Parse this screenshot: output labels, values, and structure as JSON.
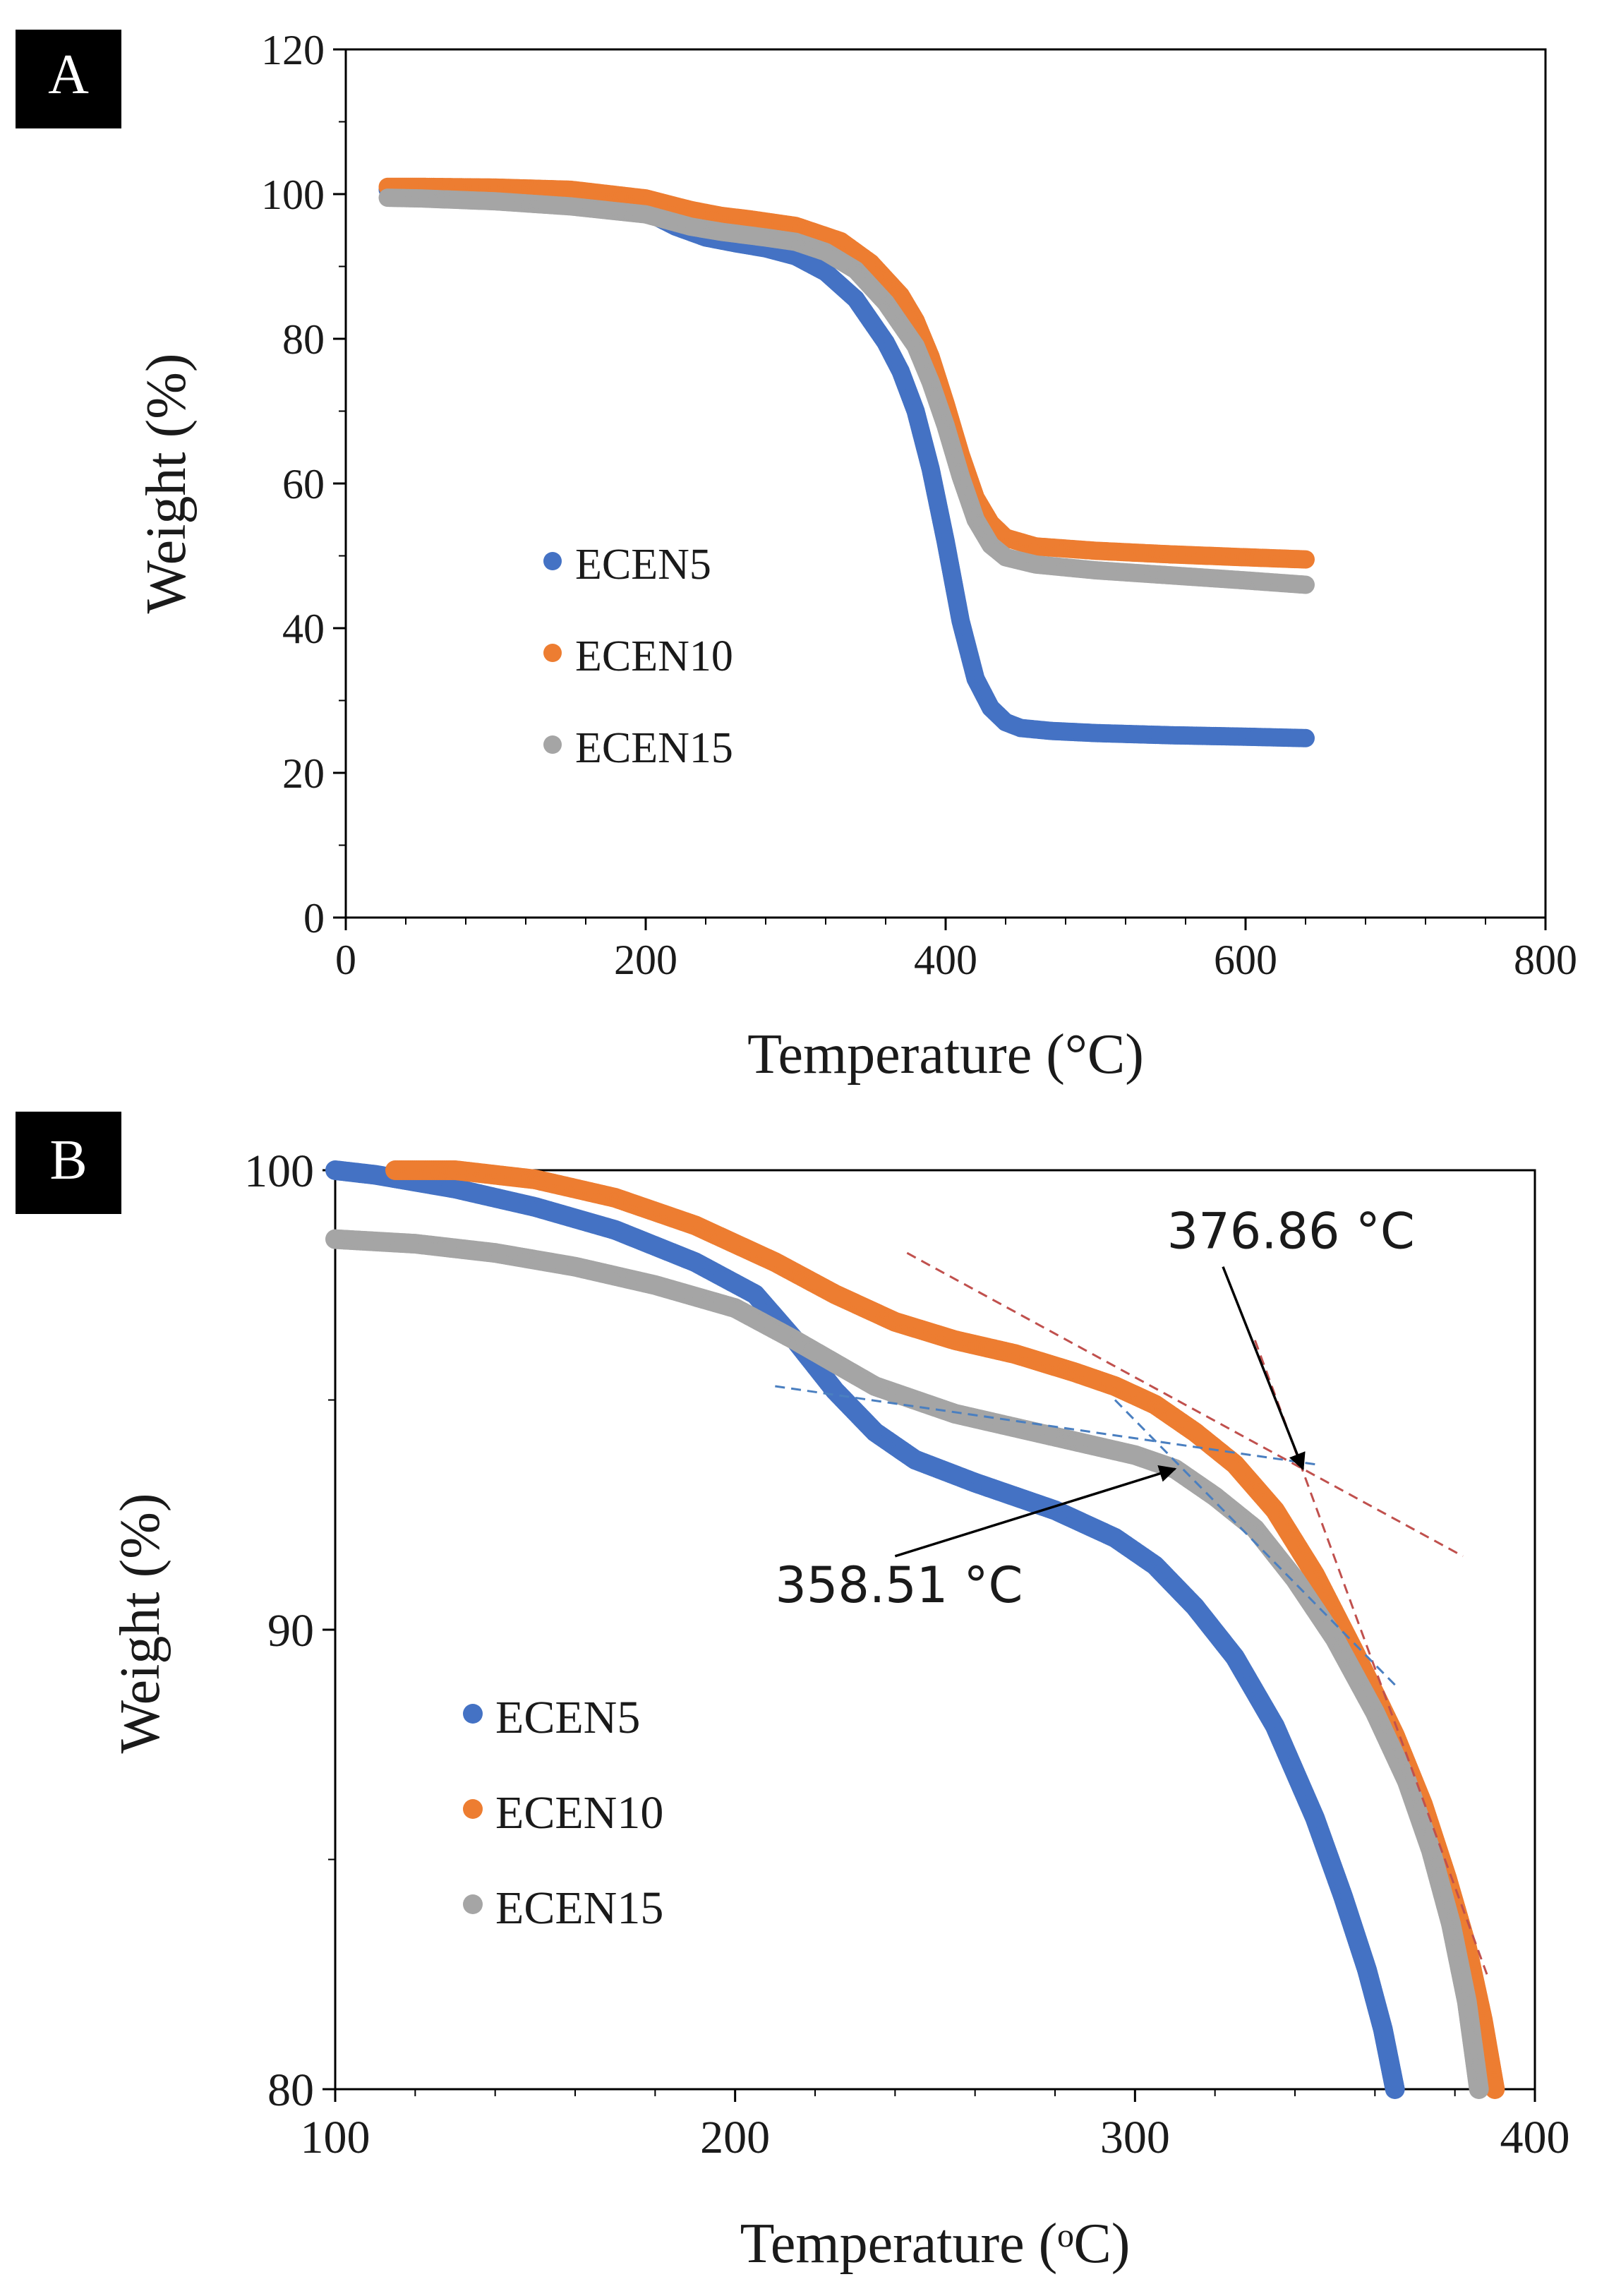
{
  "chart_data": [
    {
      "type": "scatter",
      "panel_label": "A",
      "title": "",
      "xlabel": "Temperature (°C)",
      "ylabel": "Weight (%)",
      "xlim": [
        0,
        800
      ],
      "ylim": [
        0,
        120
      ],
      "xticks": [
        0,
        200,
        400,
        600,
        800
      ],
      "yticks": [
        0,
        20,
        40,
        60,
        80,
        100,
        120
      ],
      "x_minor_step": 40,
      "y_minor_step": 10,
      "legend_position": "center-left",
      "series": [
        {
          "name": "ECEN5",
          "color": "#4472c4",
          "points": [
            [
              28,
              100.6
            ],
            [
              50,
              100.5
            ],
            [
              100,
              100
            ],
            [
              150,
              99.4
            ],
            [
              180,
              98.5
            ],
            [
              200,
              97.6
            ],
            [
              220,
              95.5
            ],
            [
              240,
              94
            ],
            [
              260,
              93.2
            ],
            [
              280,
              92.5
            ],
            [
              300,
              91.4
            ],
            [
              320,
              89.2
            ],
            [
              340,
              85.5
            ],
            [
              360,
              79.5
            ],
            [
              370,
              75.5
            ],
            [
              380,
              70
            ],
            [
              390,
              62
            ],
            [
              400,
              52
            ],
            [
              410,
              41
            ],
            [
              420,
              33
            ],
            [
              430,
              29
            ],
            [
              440,
              27
            ],
            [
              450,
              26.2
            ],
            [
              470,
              25.8
            ],
            [
              500,
              25.5
            ],
            [
              550,
              25.2
            ],
            [
              600,
              25
            ],
            [
              640,
              24.8
            ]
          ]
        },
        {
          "name": "ECEN10",
          "color": "#ed7d31",
          "points": [
            [
              28,
              101
            ],
            [
              50,
              101
            ],
            [
              100,
              100.9
            ],
            [
              150,
              100.6
            ],
            [
              200,
              99.4
            ],
            [
              230,
              97.8
            ],
            [
              250,
              97
            ],
            [
              270,
              96.5
            ],
            [
              300,
              95.6
            ],
            [
              330,
              93.5
            ],
            [
              350,
              90.5
            ],
            [
              370,
              86
            ],
            [
              380,
              82.5
            ],
            [
              390,
              77.5
            ],
            [
              400,
              71
            ],
            [
              410,
              64
            ],
            [
              420,
              58
            ],
            [
              430,
              54.5
            ],
            [
              440,
              52.5
            ],
            [
              460,
              51.3
            ],
            [
              500,
              50.7
            ],
            [
              550,
              50.2
            ],
            [
              600,
              49.8
            ],
            [
              640,
              49.5
            ]
          ]
        },
        {
          "name": "ECEN15",
          "color": "#a5a5a5",
          "points": [
            [
              28,
              99.5
            ],
            [
              50,
              99.4
            ],
            [
              100,
              99
            ],
            [
              150,
              98.3
            ],
            [
              200,
              97.2
            ],
            [
              230,
              95.5
            ],
            [
              250,
              94.8
            ],
            [
              280,
              94
            ],
            [
              300,
              93.4
            ],
            [
              320,
              92
            ],
            [
              340,
              89.5
            ],
            [
              360,
              85
            ],
            [
              380,
              79
            ],
            [
              390,
              74
            ],
            [
              400,
              68
            ],
            [
              410,
              61
            ],
            [
              420,
              55
            ],
            [
              430,
              51.5
            ],
            [
              440,
              49.8
            ],
            [
              460,
              48.8
            ],
            [
              500,
              48
            ],
            [
              550,
              47.3
            ],
            [
              600,
              46.6
            ],
            [
              640,
              46
            ]
          ]
        }
      ]
    },
    {
      "type": "scatter",
      "panel_label": "B",
      "title": "",
      "xlabel": "Temperature (ᵒC)",
      "ylabel": "Weight (%)",
      "xlim": [
        100,
        400
      ],
      "ylim": [
        80,
        100
      ],
      "xticks": [
        100,
        200,
        300,
        400
      ],
      "yticks": [
        80,
        90,
        100
      ],
      "x_minor_step": 20,
      "y_minor_step": 5,
      "legend_position": "center-left",
      "series": [
        {
          "name": "ECEN5",
          "color": "#4472c4",
          "points": [
            [
              100,
              100
            ],
            [
              110,
              99.9
            ],
            [
              130,
              99.6
            ],
            [
              150,
              99.2
            ],
            [
              170,
              98.7
            ],
            [
              190,
              98
            ],
            [
              205,
              97.3
            ],
            [
              215,
              96.3
            ],
            [
              225,
              95.2
            ],
            [
              235,
              94.3
            ],
            [
              245,
              93.7
            ],
            [
              260,
              93.2
            ],
            [
              280,
              92.6
            ],
            [
              295,
              92
            ],
            [
              305,
              91.4
            ],
            [
              315,
              90.5
            ],
            [
              325,
              89.4
            ],
            [
              335,
              87.9
            ],
            [
              345,
              85.9
            ],
            [
              352,
              84.2
            ],
            [
              358,
              82.6
            ],
            [
              362,
              81.3
            ],
            [
              365,
              80
            ]
          ]
        },
        {
          "name": "ECEN10",
          "color": "#ed7d31",
          "points": [
            [
              115,
              100
            ],
            [
              130,
              100
            ],
            [
              150,
              99.8
            ],
            [
              170,
              99.4
            ],
            [
              190,
              98.8
            ],
            [
              210,
              98
            ],
            [
              225,
              97.3
            ],
            [
              240,
              96.7
            ],
            [
              255,
              96.3
            ],
            [
              270,
              96
            ],
            [
              285,
              95.6
            ],
            [
              295,
              95.3
            ],
            [
              305,
              94.9
            ],
            [
              315,
              94.3
            ],
            [
              325,
              93.6
            ],
            [
              335,
              92.6
            ],
            [
              345,
              91.2
            ],
            [
              355,
              89.5
            ],
            [
              365,
              87.7
            ],
            [
              372,
              86.2
            ],
            [
              378,
              84.6
            ],
            [
              383,
              83.1
            ],
            [
              387,
              81.5
            ],
            [
              390,
              80
            ]
          ]
        },
        {
          "name": "ECEN15",
          "color": "#a5a5a5",
          "points": [
            [
              100,
              98.5
            ],
            [
              120,
              98.4
            ],
            [
              140,
              98.2
            ],
            [
              160,
              97.9
            ],
            [
              180,
              97.5
            ],
            [
              200,
              97
            ],
            [
              215,
              96.3
            ],
            [
              225,
              95.8
            ],
            [
              235,
              95.3
            ],
            [
              245,
              95
            ],
            [
              255,
              94.7
            ],
            [
              270,
              94.4
            ],
            [
              285,
              94.1
            ],
            [
              300,
              93.8
            ],
            [
              310,
              93.5
            ],
            [
              320,
              92.9
            ],
            [
              330,
              92.2
            ],
            [
              340,
              91.1
            ],
            [
              350,
              89.8
            ],
            [
              360,
              88.2
            ],
            [
              368,
              86.7
            ],
            [
              374,
              85.2
            ],
            [
              379,
              83.6
            ],
            [
              383,
              81.9
            ],
            [
              386,
              80
            ]
          ]
        }
      ],
      "tangent_lines": [
        {
          "color": "#c0504d",
          "from": [
            243,
            98.2
          ],
          "to": [
            382,
            91.6
          ]
        },
        {
          "color": "#c0504d",
          "from": [
            330,
            96.3
          ],
          "to": [
            388,
            82.5
          ]
        },
        {
          "color": "#4a7fc0",
          "from": [
            210,
            95.3
          ],
          "to": [
            345,
            93.6
          ]
        },
        {
          "color": "#4a7fc0",
          "from": [
            295,
            95
          ],
          "to": [
            365,
            88.8
          ]
        }
      ],
      "annotations": [
        {
          "text": "376.86 °C",
          "text_at": [
            308,
            98.3
          ],
          "arrow_from": [
            322,
            97.9
          ],
          "arrow_to": [
            342,
            93.5
          ]
        },
        {
          "text": "358.51 °C",
          "text_at": [
            210,
            90.6
          ],
          "arrow_from": [
            240,
            91.6
          ],
          "arrow_to": [
            310,
            93.5
          ]
        }
      ]
    }
  ]
}
